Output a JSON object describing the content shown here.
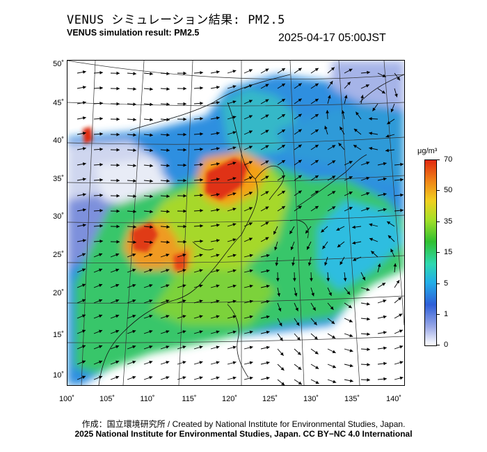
{
  "title_jp": "VENUS シミュレーション結果: PM2.5",
  "title_en": "VENUS simulation result: PM2.5",
  "timestamp": "2025-04-17 05:00JST",
  "y_ticks": [
    "50˚",
    "45˚",
    "40˚",
    "35˚",
    "30˚",
    "25˚",
    "20˚",
    "15˚",
    "10˚"
  ],
  "x_ticks": [
    "100˚",
    "105˚",
    "110˚",
    "115˚",
    "120˚",
    "125˚",
    "130˚",
    "135˚",
    "140˚"
  ],
  "colorbar": {
    "unit": "μg/m³",
    "labels": [
      "70",
      "50",
      "35",
      "15",
      "5",
      "1",
      "0"
    ],
    "colors": [
      "#ffffff",
      "#9aa8e6",
      "#2e5fd8",
      "#22aee8",
      "#2ed8b0",
      "#30c030",
      "#a6e028",
      "#f0d020",
      "#f08a18",
      "#e02a10"
    ]
  },
  "credit_line1": "作成：国立環境研究所 / Created by National Institute for Environmental Studies, Japan.",
  "credit_line2": "2025 National Institute for Environmental Studies, Japan. CC BY−NC 4.0 International"
}
